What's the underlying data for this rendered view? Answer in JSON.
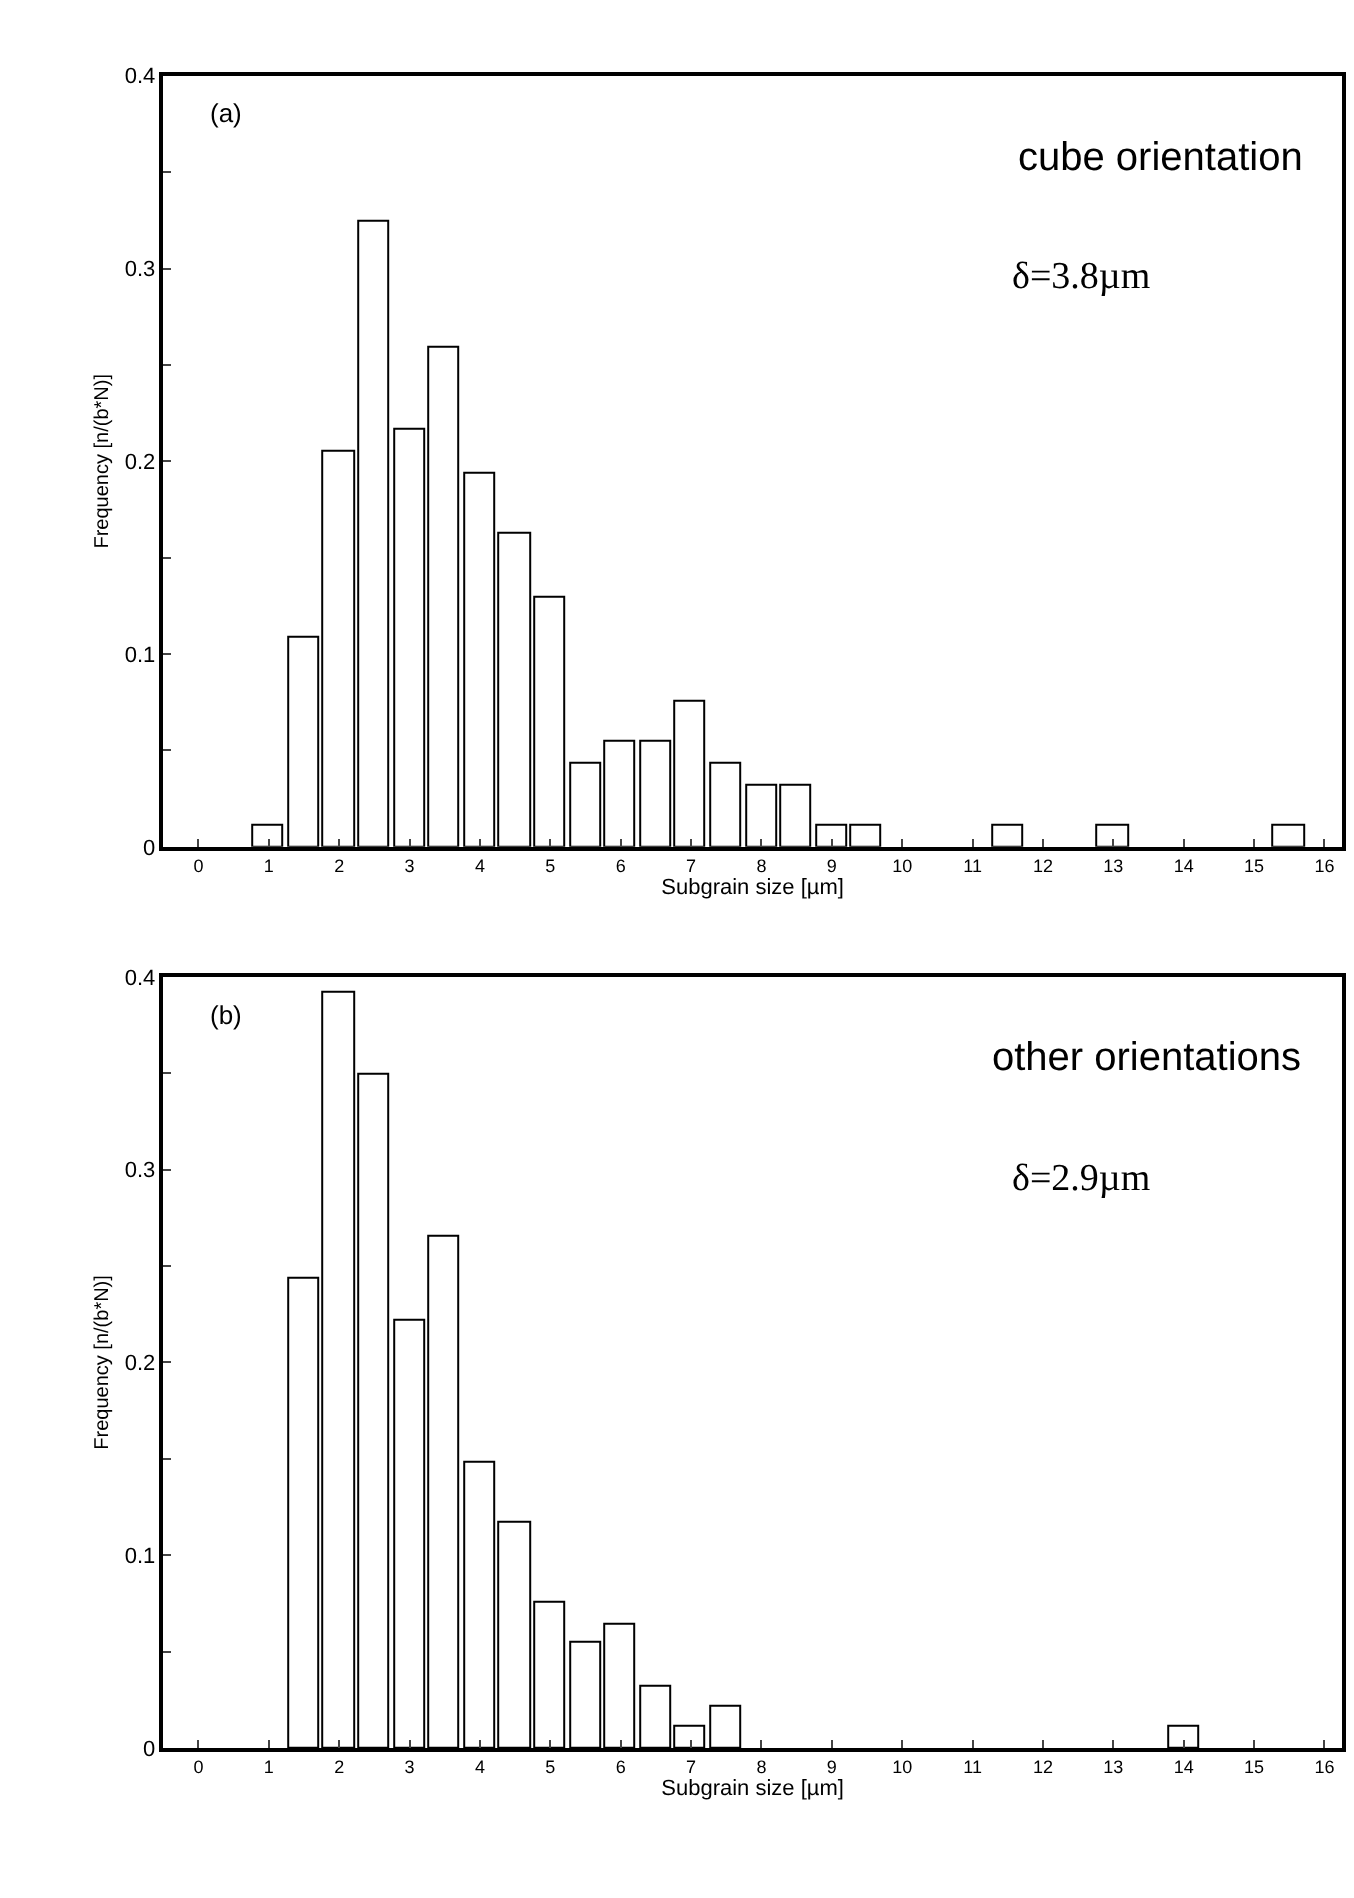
{
  "chart_data": [
    {
      "type": "histogram",
      "xlabel": "Subgrain size [µm]",
      "ylabel": "Frequency [n/(b*N)]",
      "annotations": [
        "(a)",
        "cube orientation",
        "δ=3.8µm"
      ],
      "bins": [
        0.75,
        1.25,
        1.75,
        2.25,
        2.75,
        3.25,
        3.75,
        4.25,
        4.75,
        5.25,
        5.75,
        6.25,
        6.75,
        7.25,
        7.75,
        8.25,
        8.75,
        9.25,
        9.75,
        10.25,
        10.75,
        11.25,
        11.75,
        12.25,
        12.75,
        13.25,
        13.75,
        14.25,
        14.75,
        15.25,
        15.75
      ],
      "values": [
        0.011,
        0.108,
        0.205,
        0.324,
        0.216,
        0.259,
        0.194,
        0.162,
        0.129,
        0.043,
        0.055,
        0.055,
        0.075,
        0.043,
        0.032,
        0.032,
        0.011,
        0.011,
        0,
        0,
        0,
        0.011,
        0,
        0,
        0.011,
        0,
        0,
        0,
        0,
        0.011
      ],
      "color": "#ffffff",
      "xlim": [
        -0.5,
        16.25
      ],
      "xticks": [
        0,
        1,
        2,
        3,
        4,
        5,
        6,
        7,
        8,
        9,
        10,
        11,
        12,
        13,
        14,
        15,
        16
      ],
      "ylim": [
        0,
        0.4
      ],
      "yticks": [
        0,
        {
          "value": 0.05,
          "label": null
        },
        0.1,
        {
          "value": 0.15,
          "label": null
        },
        0.2,
        {
          "value": 0.25,
          "label": null
        },
        0.3,
        {
          "value": 0.35,
          "label": null
        },
        0.4
      ],
      "grid": false
    },
    {
      "type": "histogram",
      "xlabel": "Subgrain size [µm]",
      "ylabel": "Frequency [n/(b*N)]",
      "annotations": [
        "(b)",
        "other orientations",
        "δ=2.9µm"
      ],
      "bins": [
        1.25,
        1.75,
        2.25,
        2.75,
        3.25,
        3.75,
        4.25,
        4.75,
        5.25,
        5.75,
        6.25,
        6.75,
        7.25,
        7.75,
        8.25,
        8.75,
        9.25,
        9.75,
        10.25,
        10.75,
        11.25,
        11.75,
        12.25,
        12.75,
        13.25,
        13.75,
        14.25
      ],
      "values": [
        0.243,
        0.392,
        0.349,
        0.222,
        0.265,
        0.148,
        0.117,
        0.075,
        0.055,
        0.064,
        0.032,
        0.011,
        0.021,
        0,
        0,
        0,
        0,
        0,
        0,
        0,
        0,
        0,
        0,
        0,
        0,
        0.011
      ],
      "color": "#ffffff",
      "xlim": [
        -0.5,
        16.25
      ],
      "xticks": [
        0,
        1,
        2,
        3,
        4,
        5,
        6,
        7,
        8,
        9,
        10,
        11,
        12,
        13,
        14,
        15,
        16
      ],
      "ylim": [
        0,
        0.4
      ],
      "yticks": [
        0,
        {
          "value": 0.05,
          "label": null
        },
        0.1,
        {
          "value": 0.15,
          "label": null
        },
        0.2,
        {
          "value": 0.25,
          "label": null
        },
        0.3,
        {
          "value": 0.35,
          "label": null
        },
        0.4
      ],
      "grid": false
    }
  ]
}
